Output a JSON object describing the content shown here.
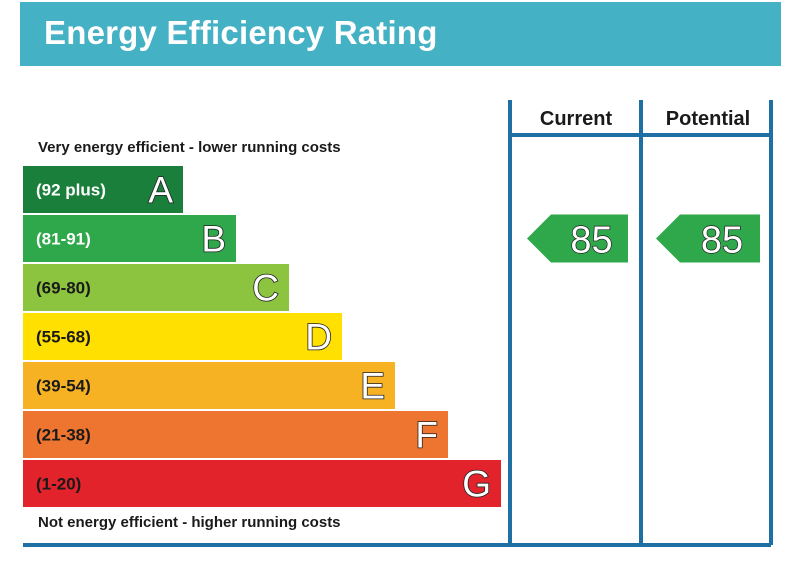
{
  "header": {
    "title": "Energy Efficiency Rating"
  },
  "chart_data": {
    "type": "bar",
    "title": "Energy Efficiency Rating",
    "top_caption": "Very energy efficient - lower running costs",
    "bottom_caption": "Not energy efficient - higher running costs",
    "columns": [
      "Current",
      "Potential"
    ],
    "bands": [
      {
        "range": "(92 plus)",
        "letter": "A",
        "color": "#1b7f3c",
        "light_text": true
      },
      {
        "range": "(81-91)",
        "letter": "B",
        "color": "#2ea84a",
        "light_text": true
      },
      {
        "range": "(69-80)",
        "letter": "C",
        "color": "#8cc43f",
        "light_text": false
      },
      {
        "range": "(55-68)",
        "letter": "D",
        "color": "#ffe000",
        "light_text": false
      },
      {
        "range": "(39-54)",
        "letter": "E",
        "color": "#f7b224",
        "light_text": false
      },
      {
        "range": "(21-38)",
        "letter": "F",
        "color": "#ee7530",
        "light_text": false
      },
      {
        "range": "(1-20)",
        "letter": "G",
        "color": "#e2232b",
        "light_text": false
      }
    ],
    "current": {
      "value": 85,
      "band": "B"
    },
    "potential": {
      "value": 85,
      "band": "B"
    },
    "arrow_color": "#2ea84a",
    "frame_color": "#1d6fa4"
  }
}
